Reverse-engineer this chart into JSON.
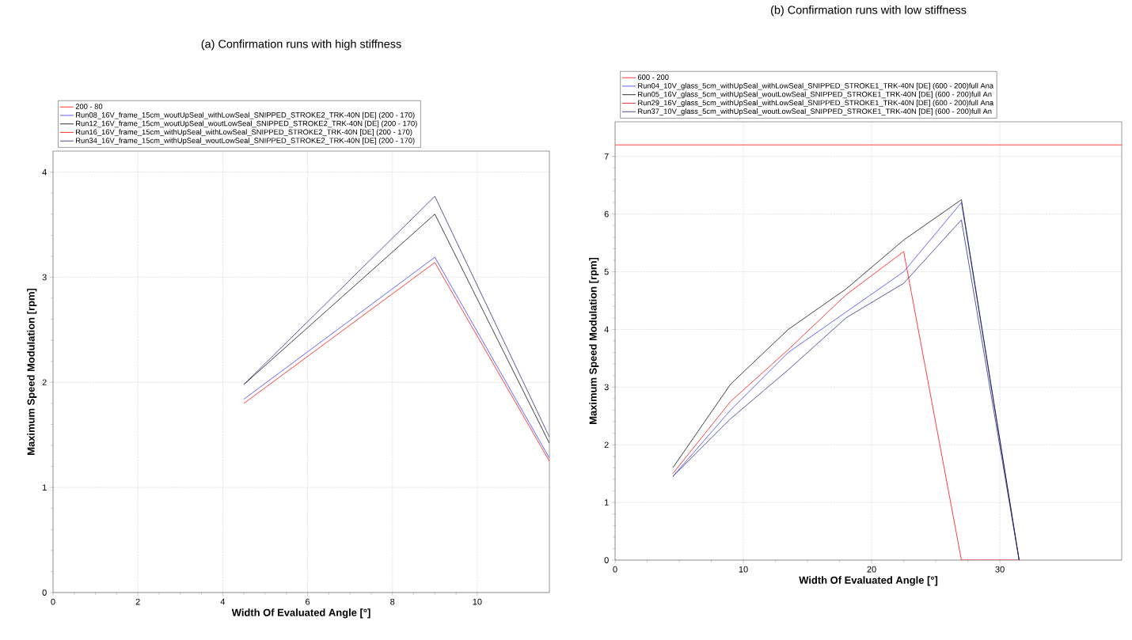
{
  "chart_data": [
    {
      "type": "line",
      "title": "(a) Confirmation runs with high stiffness",
      "xlabel": "Width Of Evaluated Angle [°]",
      "ylabel": "Maximum Speed Modulation [rpm]",
      "xlim": [
        0,
        11.7
      ],
      "ylim": [
        0,
        4.2
      ],
      "xticks": [
        0,
        2,
        4,
        6,
        8,
        10
      ],
      "yticks": [
        0,
        1,
        2,
        3,
        4
      ],
      "grid": true,
      "legend": "top",
      "series": [
        {
          "name": "200 - 80",
          "color": "#ff0000"
        },
        {
          "name": "Run08_16V_frame_15cm_woutUpSeal_withLowSeal_SNIPPED_STROKE2_TRK-40N [DE] (200 - 170)",
          "color": "#3333ff",
          "x": [
            4.5,
            9,
            11.7
          ],
          "values": [
            1.84,
            3.19,
            1.28
          ]
        },
        {
          "name": "Run12_16V_frame_15cm_woutUpSeal_woutLowSeal_SNIPPED_STROKE2_TRK-40N [DE] (200 - 170)",
          "color": "#000000",
          "x": [
            4.5,
            9,
            11.7
          ],
          "values": [
            1.98,
            3.6,
            1.42
          ]
        },
        {
          "name": "Run16_16V_frame_15cm_withUpSeal_withLowSeal_SNIPPED_STROKE2_TRK-40N [DE] (200 - 170)",
          "color": "#ff0000",
          "x": [
            4.5,
            9,
            11.7
          ],
          "values": [
            1.8,
            3.14,
            1.25
          ]
        },
        {
          "name": "Run34_16V_frame_15cm_withUpSeal_woutLowSeal_SNIPPED_STROKE2_TRK-40N [DE] (200 - 170)",
          "color": "#202080",
          "x": [
            4.5,
            9,
            11.7
          ],
          "values": [
            1.98,
            3.77,
            1.48
          ]
        }
      ]
    },
    {
      "type": "line",
      "title": "(b) Confirmation runs with low stiffness",
      "xlabel": "Width Of Evaluated Angle [°]",
      "ylabel": "Maximum Speed Modulation [rpm]",
      "xlim": [
        0,
        39.5
      ],
      "ylim": [
        0,
        7.6
      ],
      "xticks": [
        0,
        10,
        20,
        30
      ],
      "yticks": [
        0,
        1,
        2,
        3,
        4,
        5,
        6,
        7
      ],
      "grid": true,
      "legend": "top",
      "series": [
        {
          "name": "600 - 200",
          "color": "#ff0000",
          "x": [
            0,
            39.5
          ],
          "values": [
            7.2,
            7.2
          ]
        },
        {
          "name": "Run04_10V_glass_5cm_withUpSeal_withLowSeal_SNIPPED_STROKE1_TRK-40N [DE] (600 - 200)full Ana",
          "color": "#3333ff",
          "x": [
            4.5,
            9,
            13.5,
            18,
            22.5,
            27,
            31.5
          ],
          "values": [
            1.45,
            2.6,
            3.6,
            4.3,
            5.0,
            6.2,
            0
          ]
        },
        {
          "name": "Run05_16V_glass_5cm_withUpSeal_woutLowSeal_SNIPPED_STROKE1_TRK-40N [DE] (600 - 200)full An",
          "color": "#000000",
          "x": [
            4.5,
            9,
            13.5,
            18,
            22.5,
            27,
            31.5
          ],
          "values": [
            1.6,
            3.05,
            4.0,
            4.7,
            5.55,
            6.25,
            0
          ]
        },
        {
          "name": "Run29_16V_glass_5cm_withUpSeal_withLowSeal_SNIPPED_STROKE1_TRK-40N [DE] (600 - 200)full Ana",
          "color": "#ff0000",
          "x": [
            4.5,
            9,
            13.5,
            18,
            22.5,
            27,
            31.5
          ],
          "values": [
            1.5,
            2.75,
            3.65,
            4.6,
            5.35,
            0,
            0
          ]
        },
        {
          "name": "Run37_10V_glass_5cm_withUpSeal_woutLowSeal_SNIPPED_STROKE1_TRK-40N [DE] (600 - 200)full An",
          "color": "#202080",
          "x": [
            4.5,
            9,
            13.5,
            18,
            22.5,
            27,
            31.5
          ],
          "values": [
            1.45,
            2.45,
            3.3,
            4.2,
            4.8,
            5.9,
            0
          ]
        }
      ]
    }
  ]
}
